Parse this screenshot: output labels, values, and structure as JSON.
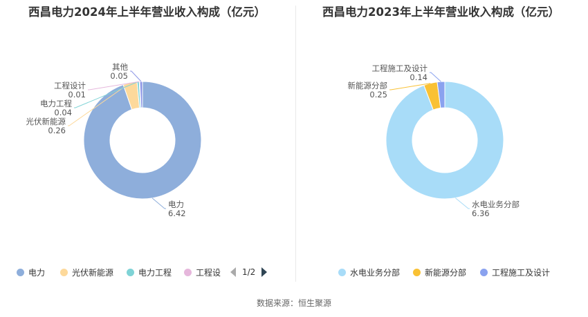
{
  "source": "数据来源：恒生聚源",
  "chart_data": [
    {
      "type": "pie",
      "title": "西昌电力2024年上半年营业收入构成（亿元）",
      "series": [
        {
          "name": "电力",
          "value": 6.42,
          "value_label": "6.42",
          "color": "#8eaedb"
        },
        {
          "name": "光伏新能源",
          "value": 0.26,
          "value_label": "0.26",
          "color": "#fdd99b"
        },
        {
          "name": "电力工程",
          "value": 0.04,
          "value_label": "0.04",
          "color": "#7fd3d6"
        },
        {
          "name": "工程设计",
          "value": 0.01,
          "value_label": "0.01",
          "color": "#e6b7dc"
        },
        {
          "name": "其他",
          "value": 0.05,
          "value_label": "0.05",
          "color": "#8c96e6"
        }
      ],
      "legend": {
        "position": "bottom",
        "visible_items": [
          "电力",
          "光伏新能源",
          "电力工程",
          "工程设"
        ],
        "pager": "1/2"
      }
    },
    {
      "type": "pie",
      "title": "西昌电力2023年上半年营业收入构成（亿元）",
      "series": [
        {
          "name": "水电业务分部",
          "value": 6.36,
          "value_label": "6.36",
          "color": "#a8dcf8"
        },
        {
          "name": "新能源分部",
          "value": 0.25,
          "value_label": "0.25",
          "color": "#f9c134"
        },
        {
          "name": "工程施工及设计",
          "value": 0.14,
          "value_label": "0.14",
          "color": "#8aa2ef"
        }
      ],
      "legend": {
        "position": "bottom",
        "visible_items": [
          "水电业务分部",
          "新能源分部",
          "工程施工及设计"
        ]
      }
    }
  ]
}
